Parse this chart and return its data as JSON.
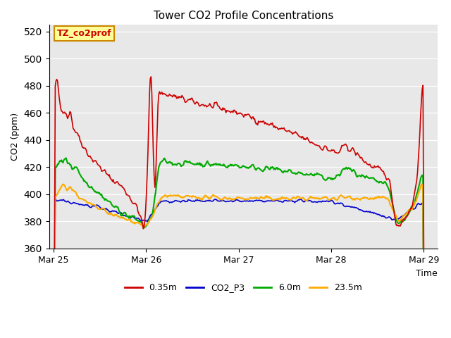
{
  "title": "Tower CO2 Profile Concentrations",
  "xlabel": "Time",
  "ylabel": "CO2 (ppm)",
  "ylim": [
    360,
    525
  ],
  "yticks": [
    360,
    380,
    400,
    420,
    440,
    460,
    480,
    500,
    520
  ],
  "bg_color": "#e8e8e8",
  "fig_color": "#ffffff",
  "annotation_text": "TZ_co2prof",
  "annotation_bg": "#ffff99",
  "annotation_border": "#cc8800",
  "series": {
    "0.35m": {
      "color": "#cc0000",
      "lw": 1.2
    },
    "CO2_P3": {
      "color": "#0000cc",
      "lw": 1.2
    },
    "6.0m": {
      "color": "#00aa00",
      "lw": 1.5
    },
    "23.5m": {
      "color": "#ffaa00",
      "lw": 1.5
    }
  },
  "xtick_labels": [
    "Mar 25",
    "Mar 26",
    "Mar 27",
    "Mar 28",
    "Mar 29"
  ],
  "xtick_positions": [
    0,
    1,
    2,
    3,
    4
  ]
}
